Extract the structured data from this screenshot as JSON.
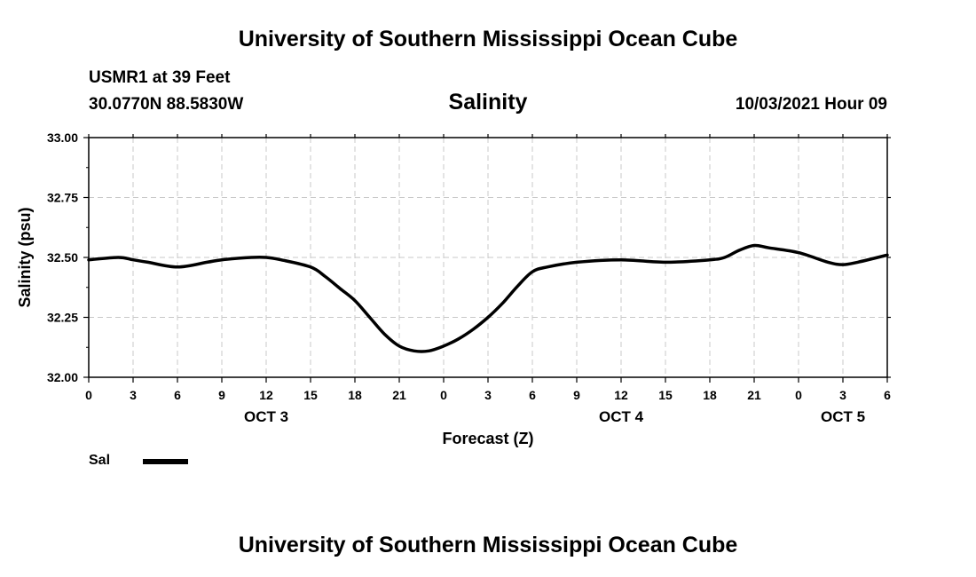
{
  "header": {
    "title": "University of Southern Mississippi Ocean Cube",
    "station": "USMR1 at 39 Feet",
    "coordinates": "30.0770N  88.5830W",
    "datetime": "10/03/2021 Hour 09"
  },
  "footer": {
    "title": "University of Southern Mississippi Ocean Cube"
  },
  "chart_data": {
    "type": "line",
    "title": "Salinity",
    "xlabel": "Forecast (Z)",
    "ylabel": "Salinity (psu)",
    "ylim": [
      32.0,
      33.0
    ],
    "yticks": [
      "32.00",
      "32.25",
      "32.50",
      "32.75",
      "33.00"
    ],
    "xlim": [
      0,
      54
    ],
    "xtick_labels": [
      "0",
      "3",
      "6",
      "9",
      "12",
      "15",
      "18",
      "21",
      "0",
      "3",
      "6",
      "9",
      "12",
      "15",
      "18",
      "21",
      "0",
      "3",
      "6"
    ],
    "day_labels": [
      {
        "label": "OCT 3",
        "hour": 12
      },
      {
        "label": "OCT 4",
        "hour": 36
      },
      {
        "label": "OCT 5",
        "hour": 51
      }
    ],
    "grid": true,
    "legend_position": "bottom-left",
    "series": [
      {
        "name": "Sal",
        "color": "#000000",
        "x": [
          0,
          2,
          3,
          4,
          6,
          8,
          9,
          11,
          12,
          13,
          15,
          16,
          17,
          18,
          19,
          20,
          21,
          22,
          23,
          24,
          25,
          26,
          27,
          28,
          29,
          30,
          31,
          33,
          36,
          39,
          42,
          43,
          44,
          45,
          46,
          48,
          50,
          51,
          52,
          54
        ],
        "values": [
          32.49,
          32.5,
          32.49,
          32.48,
          32.46,
          32.48,
          32.49,
          32.5,
          32.5,
          32.49,
          32.46,
          32.42,
          32.37,
          32.32,
          32.25,
          32.18,
          32.13,
          32.11,
          32.11,
          32.13,
          32.16,
          32.2,
          32.25,
          32.31,
          32.38,
          32.44,
          32.46,
          32.48,
          32.49,
          32.48,
          32.49,
          32.5,
          32.53,
          32.55,
          32.54,
          32.52,
          32.48,
          32.47,
          32.48,
          32.51
        ]
      }
    ]
  },
  "legend": {
    "items": [
      {
        "label": "Sal",
        "color": "#000000"
      }
    ]
  }
}
